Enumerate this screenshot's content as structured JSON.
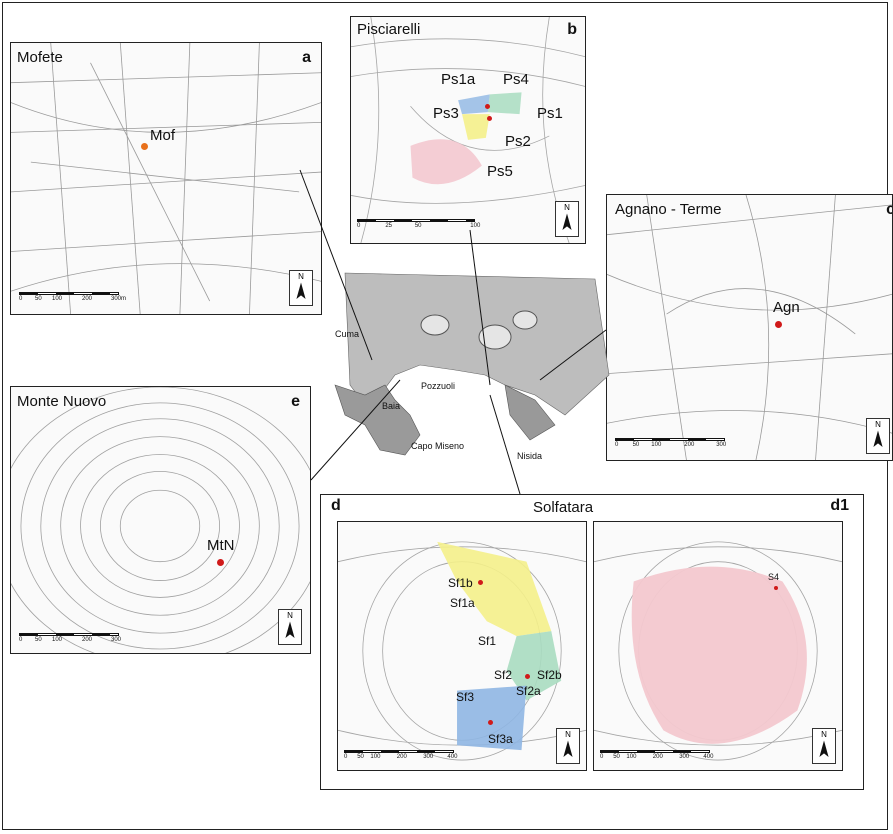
{
  "panels": {
    "a": {
      "title": "Mofete",
      "letter": "a",
      "sites": [
        "Mof"
      ],
      "scale": [
        "0",
        "50",
        "100",
        "200",
        "300"
      ],
      "unit": "m"
    },
    "b": {
      "title": "Pisciarelli",
      "letter": "b",
      "sites": [
        "Ps1a",
        "Ps4",
        "Ps3",
        "Ps1",
        "Ps2",
        "Ps5"
      ],
      "scale": [
        "0",
        "25",
        "50",
        "100"
      ],
      "unit": "m"
    },
    "c": {
      "title": "Agnano - Terme",
      "letter": "c",
      "sites": [
        "Agn"
      ],
      "scale": [
        "0",
        "50",
        "100",
        "200",
        "300"
      ],
      "unit": "m"
    },
    "d": {
      "title": "Solfatara",
      "letter": "d",
      "sites": [
        "Sf1b",
        "Sf1a",
        "Sf1",
        "Sf2",
        "Sf2b",
        "Sf2a",
        "Sf3",
        "Sf3a"
      ],
      "scale": [
        "0",
        "50",
        "100",
        "200",
        "300",
        "400"
      ],
      "unit": "m"
    },
    "d1": {
      "letter": "d1",
      "sites": [
        "S4"
      ],
      "scale": [
        "0",
        "50",
        "100",
        "200",
        "300",
        "400"
      ],
      "unit": "m"
    },
    "e": {
      "title": "Monte Nuovo",
      "letter": "e",
      "sites": [
        "MtN"
      ],
      "scale": [
        "0",
        "50",
        "100",
        "200",
        "300"
      ],
      "unit": "m"
    }
  },
  "north_label": "N",
  "center_map": {
    "labels": [
      "Cuma",
      "Baia",
      "Pozzuoli",
      "Capo Miseno",
      "Nisida"
    ]
  },
  "colors": {
    "red_site": "#d01a1a",
    "orange_site": "#e8701a",
    "yellow_zone": "#f4ef8a",
    "blue_zone": "#8fb6e3",
    "green_zone": "#a8dcc0",
    "pink_zone": "#f3c8cf",
    "relief": "#8a8a8a"
  }
}
